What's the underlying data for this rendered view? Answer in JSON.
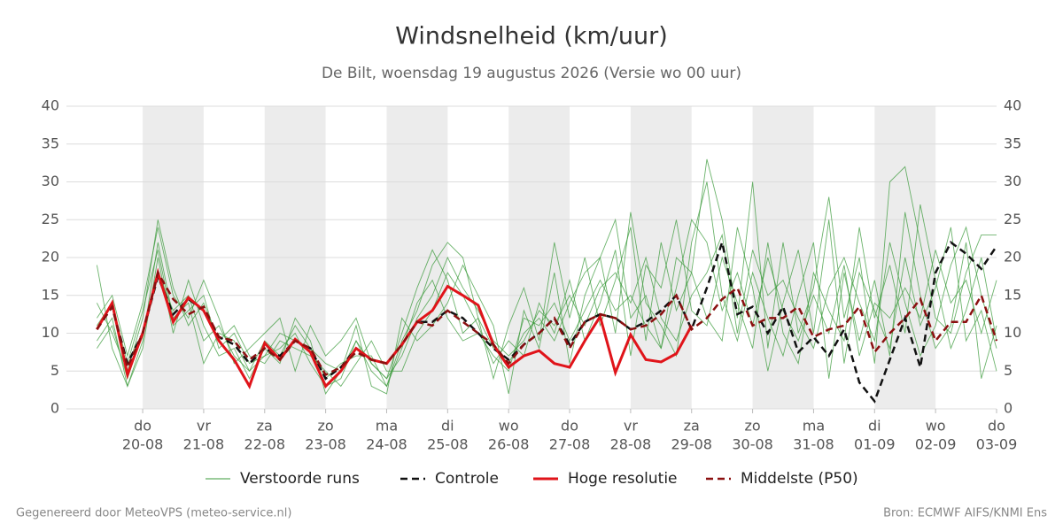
{
  "chart_data": {
    "type": "line",
    "title": "Windsnelheid (km/uur)",
    "subtitle": "De Bilt, woensdag 19 augustus 2026 (Versie wo 00 uur)",
    "footer_left": "Gegenereerd door MeteoVPS (meteo-service.nl)",
    "footer_right": "Bron: ECMWF AIFS/KNMI Ens",
    "x": [
      -3,
      -2,
      -1,
      0,
      1,
      2,
      3,
      4,
      5,
      6,
      7,
      8,
      9,
      10,
      11,
      12,
      13,
      14,
      15,
      16,
      17,
      18,
      19,
      20,
      21,
      22,
      23,
      24,
      25,
      26,
      27,
      28,
      29,
      30,
      31,
      32,
      33,
      34,
      35,
      36,
      37,
      38,
      39,
      40,
      41,
      42,
      43,
      44,
      45,
      46,
      47,
      48,
      49,
      50,
      51,
      52,
      53,
      54,
      55,
      56
    ],
    "xlim": [
      -5,
      56
    ],
    "xticks": [
      {
        "value": 0,
        "label": "do",
        "date": "20-08"
      },
      {
        "value": 4,
        "label": "vr",
        "date": "21-08"
      },
      {
        "value": 8,
        "label": "za",
        "date": "22-08"
      },
      {
        "value": 12,
        "label": "zo",
        "date": "23-08"
      },
      {
        "value": 16,
        "label": "ma",
        "date": "24-08"
      },
      {
        "value": 20,
        "label": "di",
        "date": "25-08"
      },
      {
        "value": 24,
        "label": "wo",
        "date": "26-08"
      },
      {
        "value": 28,
        "label": "do",
        "date": "27-08"
      },
      {
        "value": 32,
        "label": "vr",
        "date": "28-08"
      },
      {
        "value": 36,
        "label": "za",
        "date": "29-08"
      },
      {
        "value": 40,
        "label": "zo",
        "date": "30-08"
      },
      {
        "value": 44,
        "label": "ma",
        "date": "31-08"
      },
      {
        "value": 48,
        "label": "di",
        "date": "01-09"
      },
      {
        "value": 52,
        "label": "wo",
        "date": "02-09"
      },
      {
        "value": 56,
        "label": "do",
        "date": "03-09"
      }
    ],
    "ylim": [
      0,
      40
    ],
    "yticks": [
      0,
      5,
      10,
      15,
      20,
      25,
      30,
      35,
      40
    ],
    "grid": true,
    "legend": "bottom",
    "series": [
      {
        "name": "Verstoorde runs",
        "color": "#3a9a3a",
        "style": "thin",
        "values": [
          [
            19,
            8,
            3,
            9,
            22,
            12,
            14,
            6,
            10,
            9,
            5,
            7,
            8,
            10,
            6,
            3,
            4,
            9,
            5,
            3,
            9,
            13,
            19,
            22,
            20,
            12,
            8,
            6,
            10,
            12,
            9,
            14,
            18,
            20,
            25,
            12,
            15,
            8,
            20,
            18,
            33,
            25,
            12,
            30,
            8,
            22,
            10,
            16,
            28,
            12,
            20,
            6,
            30,
            32,
            22,
            12,
            10,
            18,
            23,
            23
          ],
          [
            12,
            15,
            7,
            14,
            24,
            15,
            12,
            17,
            12,
            6,
            8,
            10,
            12,
            5,
            11,
            7,
            9,
            12,
            6,
            4,
            10,
            16,
            21,
            17,
            10,
            12,
            4,
            11,
            16,
            9,
            22,
            12,
            20,
            11,
            17,
            24,
            9,
            22,
            13,
            18,
            12,
            9,
            24,
            16,
            5,
            14,
            21,
            10,
            25,
            6,
            18,
            13,
            8,
            20,
            11,
            16,
            24,
            9,
            13,
            5
          ],
          [
            9,
            12,
            3,
            8,
            20,
            10,
            17,
            11,
            7,
            8,
            4,
            8,
            6,
            12,
            9,
            2,
            5,
            11,
            3,
            2,
            12,
            9,
            11,
            14,
            19,
            15,
            11,
            2,
            13,
            8,
            18,
            6,
            15,
            20,
            10,
            26,
            14,
            11,
            7,
            22,
            30,
            15,
            9,
            18,
            12,
            7,
            15,
            22,
            4,
            18,
            9,
            17,
            7,
            26,
            15,
            8,
            11,
            22,
            4,
            11
          ],
          [
            14,
            10,
            5,
            12,
            25,
            16,
            11,
            14,
            9,
            11,
            7,
            6,
            9,
            8,
            7,
            5,
            3,
            6,
            9,
            5,
            5,
            10,
            13,
            18,
            15,
            11,
            6,
            9,
            7,
            14,
            10,
            17,
            9,
            14,
            21,
            7,
            19,
            16,
            25,
            13,
            11,
            20,
            14,
            8,
            22,
            10,
            6,
            18,
            13,
            9,
            24,
            12,
            19,
            10,
            27,
            17,
            8,
            13,
            20,
            9
          ],
          [
            8,
            11,
            4,
            10,
            18,
            13,
            15,
            9,
            11,
            7,
            5,
            9,
            7,
            11,
            8,
            4,
            6,
            7,
            7,
            3,
            8,
            14,
            17,
            12,
            9,
            10,
            7,
            5,
            12,
            11,
            14,
            9,
            13,
            17,
            13,
            15,
            11,
            8,
            16,
            25,
            22,
            13,
            18,
            11,
            20,
            13,
            9,
            15,
            10,
            19,
            7,
            14,
            12,
            16,
            12,
            21,
            14,
            17,
            10,
            17
          ],
          [
            11,
            14,
            6,
            13,
            21,
            11,
            13,
            15,
            8,
            10,
            6,
            7,
            10,
            9,
            8,
            6,
            5,
            9,
            6,
            4,
            7,
            12,
            15,
            20,
            16,
            13,
            9,
            7,
            9,
            13,
            11,
            15,
            11,
            16,
            18,
            14,
            20,
            12,
            9,
            15,
            18,
            23,
            10,
            21,
            15,
            17,
            12,
            8,
            16,
            20,
            14,
            9,
            22,
            14,
            7,
            11,
            19,
            24,
            15,
            8
          ]
        ]
      },
      {
        "name": "Controle",
        "color": "#111111",
        "style": "dashed",
        "values": [
          10.5,
          13.5,
          6,
          10,
          17.5,
          12.5,
          14.5,
          13,
          9.5,
          8.5,
          6,
          8,
          7,
          9,
          8,
          4,
          5.5,
          8,
          6.5,
          6,
          8.5,
          11.5,
          11.5,
          13,
          12,
          10,
          8,
          6.5,
          8.5,
          10,
          12,
          8.5,
          11.5,
          12.5,
          12,
          10.5,
          11.5,
          13,
          15,
          10.5,
          16,
          22,
          12.5,
          13.5,
          10,
          13.5,
          7.5,
          9.5,
          7,
          10.5,
          3.5,
          1,
          6.5,
          12,
          5.5,
          18,
          22,
          20.5,
          18.5,
          21.5
        ]
      },
      {
        "name": "Hoge resolutie",
        "color": "#e0141a",
        "style": "thick",
        "values": [
          10.5,
          14,
          4.5,
          10,
          18,
          11.5,
          14.7,
          13,
          9,
          6.5,
          3,
          8.7,
          6.5,
          9.2,
          7.5,
          3,
          5,
          8,
          6.5,
          6,
          8.5,
          11.5,
          13,
          16.2,
          15,
          13.7,
          8.5,
          5.5,
          7,
          7.7,
          6,
          5.5,
          9,
          12.2,
          4.8,
          9.8,
          6.5,
          6.2,
          7.3,
          11,
          null,
          null,
          null,
          null,
          null,
          null,
          null,
          null,
          null,
          null,
          null,
          null,
          null,
          null,
          null,
          null,
          null,
          null,
          null,
          null
        ]
      },
      {
        "name": "Middelste (P50)",
        "color": "#8b1010",
        "style": "dashed",
        "values": [
          10.5,
          13.5,
          5.5,
          10,
          18,
          14.5,
          12.5,
          13.5,
          9.5,
          9,
          6.5,
          8,
          6.5,
          9,
          8,
          4.5,
          5.5,
          7.5,
          6.5,
          6,
          8.5,
          11.5,
          11,
          13,
          11.5,
          10,
          8.5,
          6,
          8.5,
          10,
          12,
          8,
          11.5,
          12.5,
          12,
          10.5,
          11,
          12.5,
          15,
          10.5,
          12,
          14.5,
          16,
          11,
          12,
          12,
          13.5,
          9.5,
          10.5,
          11,
          13.5,
          7.5,
          10,
          12,
          14.5,
          9,
          11.5,
          11.5,
          15,
          9
        ]
      }
    ]
  }
}
